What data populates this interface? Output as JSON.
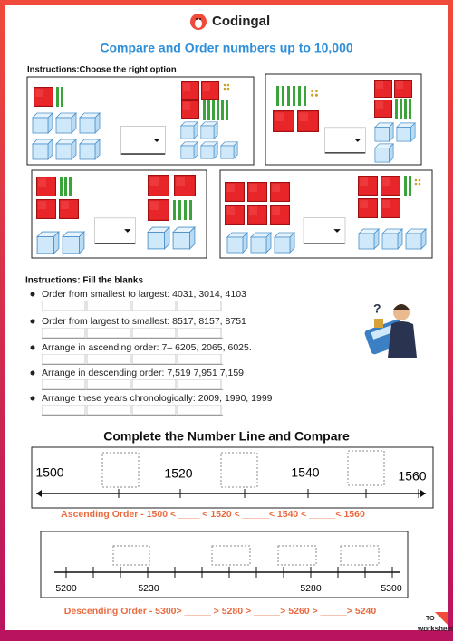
{
  "brand": "Codingal",
  "title": "Compare and Order numbers up to 10,000",
  "section1": {
    "instructions": "Instructions:Choose the right option"
  },
  "section2": {
    "instructions": "Instructions: Fill the blanks",
    "items": [
      "Order from smallest to largest: 4031, 3014, 4103",
      "Order from largest to smallest: 8517, 8157, 8751",
      "Arrange in ascending order: 7– 6205, 2065, 6025.",
      "Arrange in descending order: 7,519    7,951    7,159",
      "Arrange these years chronologically: 2009, 1990, 1999"
    ]
  },
  "section3": {
    "title": "Complete the Number Line and Compare"
  },
  "numberline1": {
    "labels": [
      "1500",
      "1520",
      "1540",
      "1560"
    ],
    "order": "Ascending Order - 1500 < ____ < 1520 < _____< 1540 < _____< 1560"
  },
  "numberline2": {
    "labels": [
      "5200",
      "5230",
      "5280",
      "5300"
    ],
    "order": "Descending Order - 5300>  _____  > 5280 > _____> 5260 > _____> 5240"
  },
  "footer": {
    "logo_top": "TO",
    "logo": "worksheets"
  }
}
